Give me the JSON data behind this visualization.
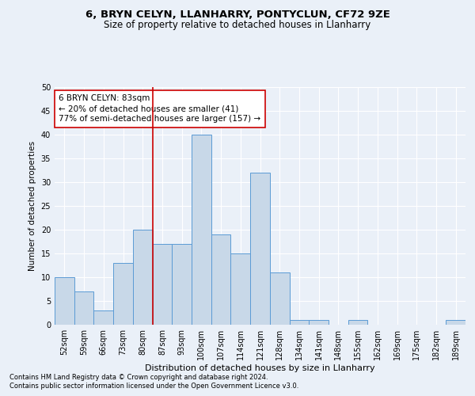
{
  "title1": "6, BRYN CELYN, LLANHARRY, PONTYCLUN, CF72 9ZE",
  "title2": "Size of property relative to detached houses in Llanharry",
  "xlabel": "Distribution of detached houses by size in Llanharry",
  "ylabel": "Number of detached properties",
  "categories": [
    "52sqm",
    "59sqm",
    "66sqm",
    "73sqm",
    "80sqm",
    "87sqm",
    "93sqm",
    "100sqm",
    "107sqm",
    "114sqm",
    "121sqm",
    "128sqm",
    "134sqm",
    "141sqm",
    "148sqm",
    "155sqm",
    "162sqm",
    "169sqm",
    "175sqm",
    "182sqm",
    "189sqm"
  ],
  "values": [
    10,
    7,
    3,
    13,
    20,
    17,
    17,
    40,
    19,
    15,
    32,
    11,
    1,
    1,
    0,
    1,
    0,
    0,
    0,
    0,
    1
  ],
  "bar_color": "#c8d8e8",
  "bar_edgecolor": "#5b9bd5",
  "vline_x_index": 4.5,
  "vline_color": "#cc0000",
  "annotation_line1": "6 BRYN CELYN: 83sqm",
  "annotation_line2": "← 20% of detached houses are smaller (41)",
  "annotation_line3": "77% of semi-detached houses are larger (157) →",
  "box_edge_color": "#cc0000",
  "ylim": [
    0,
    50
  ],
  "yticks": [
    0,
    5,
    10,
    15,
    20,
    25,
    30,
    35,
    40,
    45,
    50
  ],
  "footnote1": "Contains HM Land Registry data © Crown copyright and database right 2024.",
  "footnote2": "Contains public sector information licensed under the Open Government Licence v3.0.",
  "bg_color": "#eaf0f8",
  "plot_bg_color": "#eaf0f8",
  "grid_color": "#ffffff",
  "title1_fontsize": 9.5,
  "title2_fontsize": 8.5,
  "xlabel_fontsize": 8,
  "ylabel_fontsize": 7.5,
  "tick_fontsize": 7,
  "annot_fontsize": 7.5,
  "footnote_fontsize": 6
}
